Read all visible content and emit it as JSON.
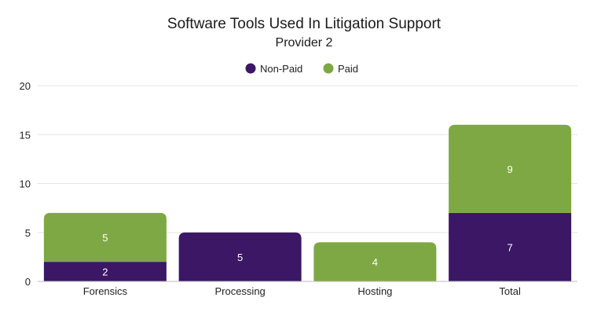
{
  "chart_data": {
    "type": "bar",
    "stacked": true,
    "title": "Software Tools Used In Litigation Support",
    "subtitle": "Provider 2",
    "categories": [
      "Forensics",
      "Processing",
      "Hosting",
      "Total"
    ],
    "series": [
      {
        "name": "Non-Paid",
        "color": "#3b1766",
        "values": [
          2,
          5,
          0,
          7
        ]
      },
      {
        "name": "Paid",
        "color": "#7ea843",
        "values": [
          5,
          0,
          4,
          9
        ]
      }
    ],
    "ylim": [
      0,
      20
    ],
    "yticks": [
      0,
      5,
      10,
      15,
      20
    ],
    "grid": true,
    "legend_position": "top-center",
    "data_labels": true
  }
}
